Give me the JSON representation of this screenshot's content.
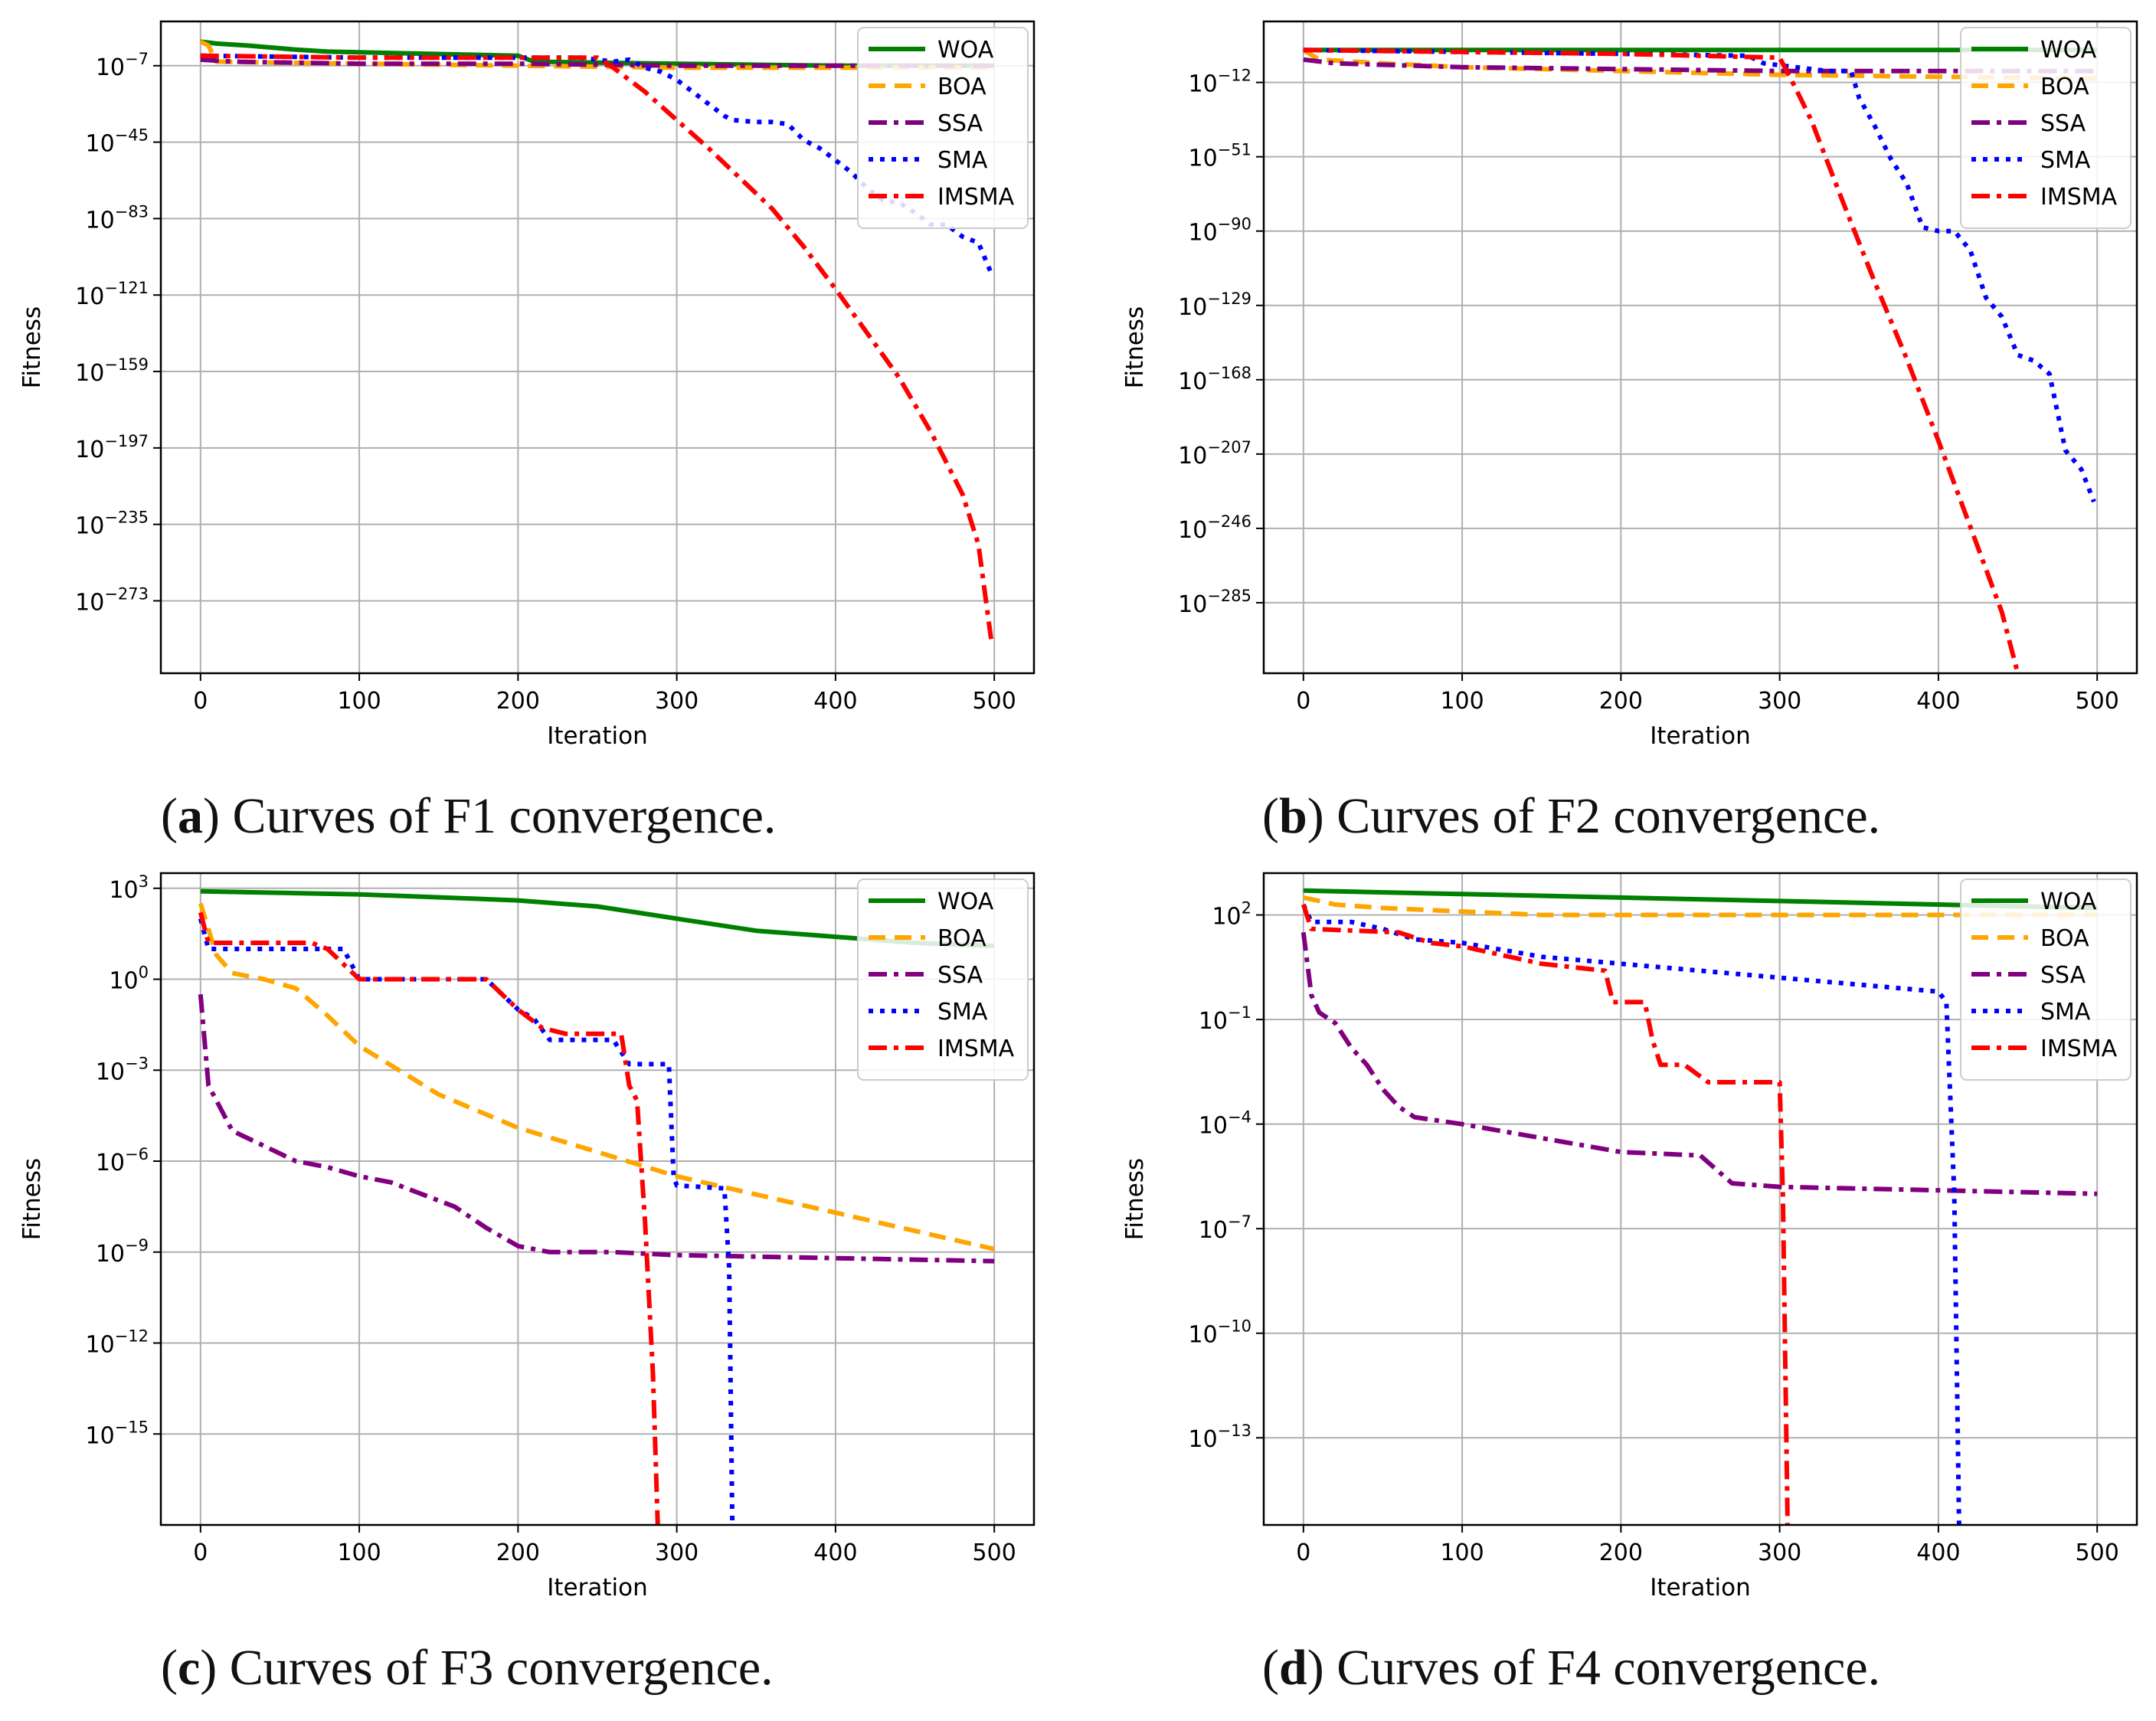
{
  "figure": {
    "captions": [
      {
        "letter": "a",
        "text": "Curves of F1 convergence."
      },
      {
        "letter": "b",
        "text": "Curves of F2 convergence."
      },
      {
        "letter": "c",
        "text": "Curves of F3 convergence."
      },
      {
        "letter": "d",
        "text": "Curves of F4 convergence."
      }
    ],
    "series_styles": [
      {
        "name": "WOA",
        "color": "#008000",
        "dash": "solid"
      },
      {
        "name": "BOA",
        "color": "#FFA500",
        "dash": "dashed"
      },
      {
        "name": "SSA",
        "color": "#800080",
        "dash": "dashdot"
      },
      {
        "name": "SMA",
        "color": "#0000FF",
        "dash": "dotted"
      },
      {
        "name": "IMSMA",
        "color": "#FF0000",
        "dash": "dashdot"
      }
    ]
  },
  "chart_data": [
    {
      "type": "line",
      "panel": "a",
      "title": "",
      "xlabel": "Iteration",
      "ylabel": "Fitness",
      "yscale": "log",
      "xlim": [
        -25,
        525
      ],
      "ylim_exp": [
        -309,
        15
      ],
      "xticks": [
        0,
        100,
        200,
        300,
        400,
        500
      ],
      "yticks_exp": [
        -7,
        -45,
        -83,
        -121,
        -159,
        -197,
        -235,
        -273
      ],
      "legend": "top-right",
      "grid": true,
      "series": [
        {
          "name": "WOA",
          "x": [
            0,
            10,
            30,
            60,
            80,
            200,
            210,
            300,
            400,
            500
          ],
          "log10_y": [
            5,
            4,
            3,
            1,
            0,
            -2,
            -5,
            -6,
            -7,
            -7
          ]
        },
        {
          "name": "BOA",
          "x": [
            0,
            5,
            10,
            100,
            200,
            300,
            400,
            500
          ],
          "log10_y": [
            5,
            3,
            -5,
            -6,
            -7,
            -8,
            -8,
            -8
          ]
        },
        {
          "name": "SSA",
          "x": [
            0,
            20,
            100,
            200,
            300,
            400,
            500
          ],
          "log10_y": [
            -4,
            -5,
            -6,
            -6,
            -7,
            -7,
            -7
          ]
        },
        {
          "name": "SMA",
          "x": [
            0,
            100,
            200,
            240,
            250,
            260,
            270,
            280,
            290,
            300,
            310,
            320,
            330,
            335,
            350,
            360,
            370,
            380,
            390,
            400,
            410,
            420,
            430,
            440,
            450,
            460,
            470,
            480,
            490,
            498
          ],
          "log10_y": [
            -2,
            -3,
            -3,
            -3,
            -4,
            -5,
            -4,
            -8,
            -10,
            -14,
            -20,
            -26,
            -32,
            -34,
            -35,
            -35,
            -36,
            -44,
            -48,
            -54,
            -60,
            -68,
            -74,
            -75,
            -80,
            -86,
            -86,
            -92,
            -95,
            -110
          ]
        },
        {
          "name": "IMSMA",
          "x": [
            0,
            100,
            200,
            250,
            260,
            270,
            280,
            290,
            300,
            320,
            340,
            360,
            380,
            400,
            420,
            440,
            460,
            480,
            490,
            498
          ],
          "log10_y": [
            -2,
            -3,
            -3,
            -3,
            -8,
            -14,
            -20,
            -27,
            -34,
            -48,
            -63,
            -78,
            -97,
            -118,
            -140,
            -162,
            -189,
            -220,
            -245,
            -292
          ]
        }
      ]
    },
    {
      "type": "line",
      "panel": "b",
      "title": "",
      "xlabel": "Iteration",
      "ylabel": "Fitness",
      "yscale": "log",
      "xlim": [
        -25,
        525
      ],
      "ylim_exp": [
        -322,
        20
      ],
      "xticks": [
        0,
        100,
        200,
        300,
        400,
        500
      ],
      "yticks_exp": [
        -12,
        -51,
        -90,
        -129,
        -168,
        -207,
        -246,
        -285
      ],
      "legend": "top-right",
      "grid": true,
      "series": [
        {
          "name": "WOA",
          "x": [
            0,
            100,
            200,
            300,
            400,
            500
          ],
          "log10_y": [
            5,
            5,
            5,
            5,
            5,
            5
          ]
        },
        {
          "name": "BOA",
          "x": [
            0,
            10,
            50,
            100,
            200,
            300,
            400,
            500
          ],
          "log10_y": [
            5,
            0,
            -2,
            -4,
            -6,
            -8,
            -9,
            -10
          ]
        },
        {
          "name": "SSA",
          "x": [
            0,
            20,
            100,
            200,
            300,
            400,
            500
          ],
          "log10_y": [
            0,
            -2,
            -4,
            -5,
            -6,
            -6,
            -6
          ]
        },
        {
          "name": "SMA",
          "x": [
            0,
            100,
            200,
            280,
            290,
            300,
            310,
            320,
            330,
            345,
            350,
            360,
            370,
            380,
            390,
            400,
            410,
            420,
            430,
            440,
            450,
            460,
            470,
            480,
            490,
            498
          ],
          "log10_y": [
            5,
            4,
            3,
            2,
            -2,
            -3,
            -4,
            -5,
            -6,
            -6,
            -20,
            -35,
            -52,
            -65,
            -88,
            -90,
            -90,
            -100,
            -125,
            -135,
            -155,
            -158,
            -165,
            -205,
            -215,
            -232
          ]
        },
        {
          "name": "IMSMA",
          "x": [
            0,
            100,
            200,
            300,
            310,
            320,
            340,
            360,
            380,
            400,
            420,
            440,
            450
          ],
          "log10_y": [
            5,
            4,
            3,
            1,
            -15,
            -32,
            -75,
            -117,
            -157,
            -200,
            -245,
            -290,
            -322
          ]
        }
      ]
    },
    {
      "type": "line",
      "panel": "c",
      "title": "",
      "xlabel": "Iteration",
      "ylabel": "Fitness",
      "yscale": "log",
      "xlim": [
        -25,
        525
      ],
      "ylim_exp": [
        -18,
        3.5
      ],
      "xticks": [
        0,
        100,
        200,
        300,
        400,
        500
      ],
      "yticks_exp": [
        3,
        0,
        -3,
        -6,
        -9,
        -12,
        -15
      ],
      "legend": "top-right",
      "grid": true,
      "series": [
        {
          "name": "WOA",
          "x": [
            0,
            100,
            200,
            250,
            300,
            350,
            400,
            450,
            500
          ],
          "log10_y": [
            2.9,
            2.8,
            2.6,
            2.4,
            2.0,
            1.6,
            1.4,
            1.2,
            1.1
          ]
        },
        {
          "name": "BOA",
          "x": [
            0,
            10,
            20,
            40,
            60,
            80,
            100,
            150,
            200,
            250,
            300,
            350,
            400,
            450,
            500
          ],
          "log10_y": [
            2.5,
            0.8,
            0.2,
            0.0,
            -0.3,
            -1.2,
            -2.2,
            -3.8,
            -4.9,
            -5.7,
            -6.5,
            -7.1,
            -7.7,
            -8.3,
            -8.9
          ]
        },
        {
          "name": "SSA",
          "x": [
            0,
            5,
            20,
            40,
            60,
            80,
            100,
            120,
            140,
            160,
            180,
            200,
            220,
            260,
            300,
            400,
            500
          ],
          "log10_y": [
            -0.5,
            -3.5,
            -5.0,
            -5.5,
            -6.0,
            -6.2,
            -6.5,
            -6.7,
            -7.1,
            -7.5,
            -8.2,
            -8.8,
            -9.0,
            -9.0,
            -9.1,
            -9.2,
            -9.3
          ]
        },
        {
          "name": "SMA",
          "x": [
            0,
            5,
            10,
            90,
            100,
            110,
            180,
            190,
            200,
            210,
            220,
            230,
            240,
            260,
            270,
            280,
            295,
            298,
            300,
            330,
            333,
            335
          ],
          "log10_y": [
            2.0,
            1.0,
            1.0,
            1.0,
            0.0,
            0.0,
            0.0,
            -0.5,
            -1.0,
            -1.3,
            -2.0,
            -2.0,
            -2.0,
            -2.0,
            -2.8,
            -2.8,
            -2.8,
            -6.5,
            -6.8,
            -6.9,
            -9.5,
            -18
          ]
        },
        {
          "name": "IMSMA",
          "x": [
            0,
            5,
            10,
            70,
            80,
            100,
            110,
            180,
            190,
            200,
            215,
            230,
            265,
            270,
            275,
            280,
            285,
            288
          ],
          "log10_y": [
            2.2,
            1.2,
            1.2,
            1.2,
            1.0,
            0.0,
            0.0,
            0.0,
            -0.5,
            -1.0,
            -1.6,
            -1.8,
            -1.8,
            -3.5,
            -4.0,
            -8.0,
            -13.0,
            -18
          ]
        }
      ]
    },
    {
      "type": "line",
      "panel": "d",
      "title": "",
      "xlabel": "Iteration",
      "ylabel": "Fitness",
      "yscale": "log",
      "xlim": [
        -25,
        525
      ],
      "ylim_exp": [
        -15.5,
        3.2
      ],
      "xticks": [
        0,
        100,
        200,
        300,
        400,
        500
      ],
      "yticks_exp": [
        2,
        -1,
        -4,
        -7,
        -10,
        -13
      ],
      "legend": "top-right",
      "grid": true,
      "series": [
        {
          "name": "WOA",
          "x": [
            0,
            100,
            200,
            300,
            400,
            500
          ],
          "log10_y": [
            2.7,
            2.6,
            2.5,
            2.4,
            2.3,
            2.2
          ]
        },
        {
          "name": "BOA",
          "x": [
            0,
            20,
            50,
            100,
            150,
            200,
            300,
            400,
            500
          ],
          "log10_y": [
            2.5,
            2.3,
            2.2,
            2.1,
            2.0,
            2.0,
            2.0,
            2.0,
            2.0
          ]
        },
        {
          "name": "SSA",
          "x": [
            0,
            5,
            10,
            20,
            30,
            40,
            50,
            60,
            70,
            100,
            150,
            200,
            250,
            270,
            300,
            400,
            500
          ],
          "log10_y": [
            1.5,
            -0.3,
            -0.8,
            -1.1,
            -1.8,
            -2.3,
            -3.0,
            -3.5,
            -3.8,
            -4.0,
            -4.4,
            -4.8,
            -4.9,
            -5.7,
            -5.8,
            -5.9,
            -6.0
          ]
        },
        {
          "name": "SMA",
          "x": [
            0,
            5,
            30,
            50,
            70,
            100,
            150,
            200,
            250,
            300,
            350,
            400,
            405,
            410,
            413
          ],
          "log10_y": [
            2.3,
            1.8,
            1.8,
            1.6,
            1.3,
            1.2,
            0.8,
            0.6,
            0.4,
            0.2,
            0.0,
            -0.2,
            -0.5,
            -6.0,
            -15.5
          ]
        },
        {
          "name": "IMSMA",
          "x": [
            0,
            5,
            60,
            80,
            100,
            150,
            190,
            195,
            215,
            220,
            225,
            240,
            255,
            260,
            300,
            302,
            305
          ],
          "log10_y": [
            2.3,
            1.6,
            1.5,
            1.2,
            1.1,
            0.6,
            0.4,
            -0.5,
            -0.5,
            -1.6,
            -2.3,
            -2.3,
            -2.8,
            -2.8,
            -2.8,
            -6.0,
            -15.5
          ]
        }
      ]
    }
  ]
}
